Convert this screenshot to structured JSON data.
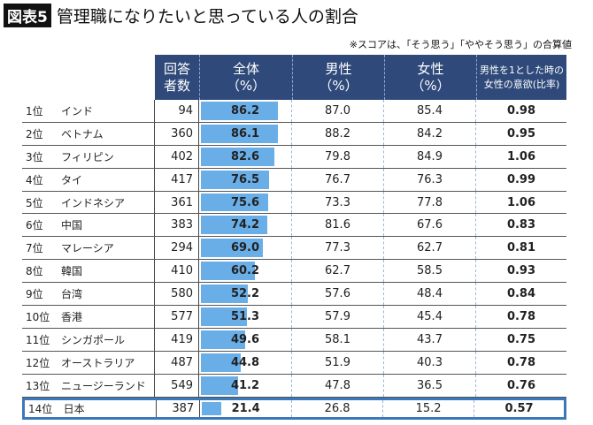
{
  "title": {
    "badge": "図表5",
    "text": "管理職になりたいと思っている人の割合"
  },
  "note": "※スコアは、「そう思う」「ややそう思う」の合算値",
  "headers": {
    "count": [
      "回答",
      "者数"
    ],
    "total": [
      "全体",
      "（%）"
    ],
    "male": [
      "男性",
      "（%）"
    ],
    "female": [
      "女性",
      "（%）"
    ],
    "ratio": [
      "男性を1とした時の",
      "女性の意欲(比率)"
    ]
  },
  "chart_data": {
    "type": "table",
    "bar_column": "全体（%）",
    "bar_range": [
      0,
      100
    ],
    "bar_color": "#6aaee8",
    "highlight_row": "日本",
    "highlight_color": "#3b78b8",
    "rows": [
      {
        "rank": "1位",
        "country": "インド",
        "count": "94",
        "total": "86.2",
        "male": "87.0",
        "female": "85.4",
        "ratio": "0.98"
      },
      {
        "rank": "2位",
        "country": "ベトナム",
        "count": "360",
        "total": "86.1",
        "male": "88.2",
        "female": "84.2",
        "ratio": "0.95"
      },
      {
        "rank": "3位",
        "country": "フィリピン",
        "count": "402",
        "total": "82.6",
        "male": "79.8",
        "female": "84.9",
        "ratio": "1.06"
      },
      {
        "rank": "4位",
        "country": "タイ",
        "count": "417",
        "total": "76.5",
        "male": "76.7",
        "female": "76.3",
        "ratio": "0.99"
      },
      {
        "rank": "5位",
        "country": "インドネシア",
        "count": "361",
        "total": "75.6",
        "male": "73.3",
        "female": "77.8",
        "ratio": "1.06"
      },
      {
        "rank": "6位",
        "country": "中国",
        "count": "383",
        "total": "74.2",
        "male": "81.6",
        "female": "67.6",
        "ratio": "0.83"
      },
      {
        "rank": "7位",
        "country": "マレーシア",
        "count": "294",
        "total": "69.0",
        "male": "77.3",
        "female": "62.7",
        "ratio": "0.81"
      },
      {
        "rank": "8位",
        "country": "韓国",
        "count": "410",
        "total": "60.2",
        "male": "62.7",
        "female": "58.5",
        "ratio": "0.93"
      },
      {
        "rank": "9位",
        "country": "台湾",
        "count": "580",
        "total": "52.2",
        "male": "57.6",
        "female": "48.4",
        "ratio": "0.84"
      },
      {
        "rank": "10位",
        "country": "香港",
        "count": "577",
        "total": "51.3",
        "male": "57.9",
        "female": "45.4",
        "ratio": "0.78"
      },
      {
        "rank": "11位",
        "country": "シンガポール",
        "count": "419",
        "total": "49.6",
        "male": "58.1",
        "female": "43.7",
        "ratio": "0.75"
      },
      {
        "rank": "12位",
        "country": "オーストラリア",
        "count": "487",
        "total": "44.8",
        "male": "51.9",
        "female": "40.3",
        "ratio": "0.78"
      },
      {
        "rank": "13位",
        "country": "ニュージーランド",
        "count": "549",
        "total": "41.2",
        "male": "47.8",
        "female": "36.5",
        "ratio": "0.76"
      },
      {
        "rank": "14位",
        "country": "日本",
        "count": "387",
        "total": "21.4",
        "male": "26.8",
        "female": "15.2",
        "ratio": "0.57"
      }
    ]
  }
}
